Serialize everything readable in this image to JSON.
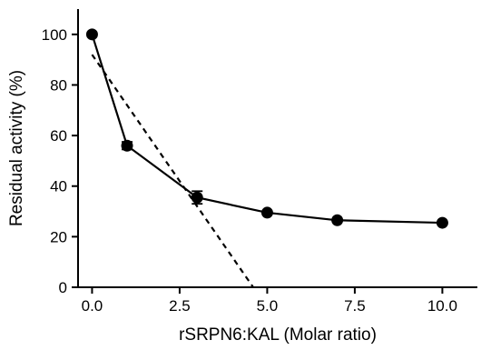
{
  "chart_data": {
    "type": "line",
    "title": "",
    "xlabel": "rSRPN6:KAL (Molar ratio)",
    "ylabel": "Residual activity (%)",
    "xlim": [
      -0.4,
      11
    ],
    "ylim": [
      0,
      110
    ],
    "x_ticks": [
      0.0,
      2.5,
      5.0,
      7.5,
      10.0
    ],
    "x_tick_labels": [
      "0.0",
      "2.5",
      "5.0",
      "7.5",
      "10.0"
    ],
    "y_ticks": [
      0,
      20,
      40,
      60,
      80,
      100
    ],
    "y_tick_labels": [
      "0",
      "20",
      "40",
      "60",
      "80",
      "100"
    ],
    "grid": false,
    "legend": "none",
    "series": [
      {
        "style": "solid",
        "marker": "circle",
        "color": "#000000",
        "x": [
          0,
          1,
          3,
          5,
          7,
          10
        ],
        "y": [
          100,
          56,
          35.5,
          29.5,
          26.5,
          25.5
        ],
        "error": [
          0,
          1.5,
          2.5,
          0,
          0,
          0
        ]
      },
      {
        "style": "dashed",
        "marker": "none",
        "color": "#000000",
        "x": [
          0,
          4.6
        ],
        "y": [
          92,
          0
        ]
      }
    ]
  }
}
